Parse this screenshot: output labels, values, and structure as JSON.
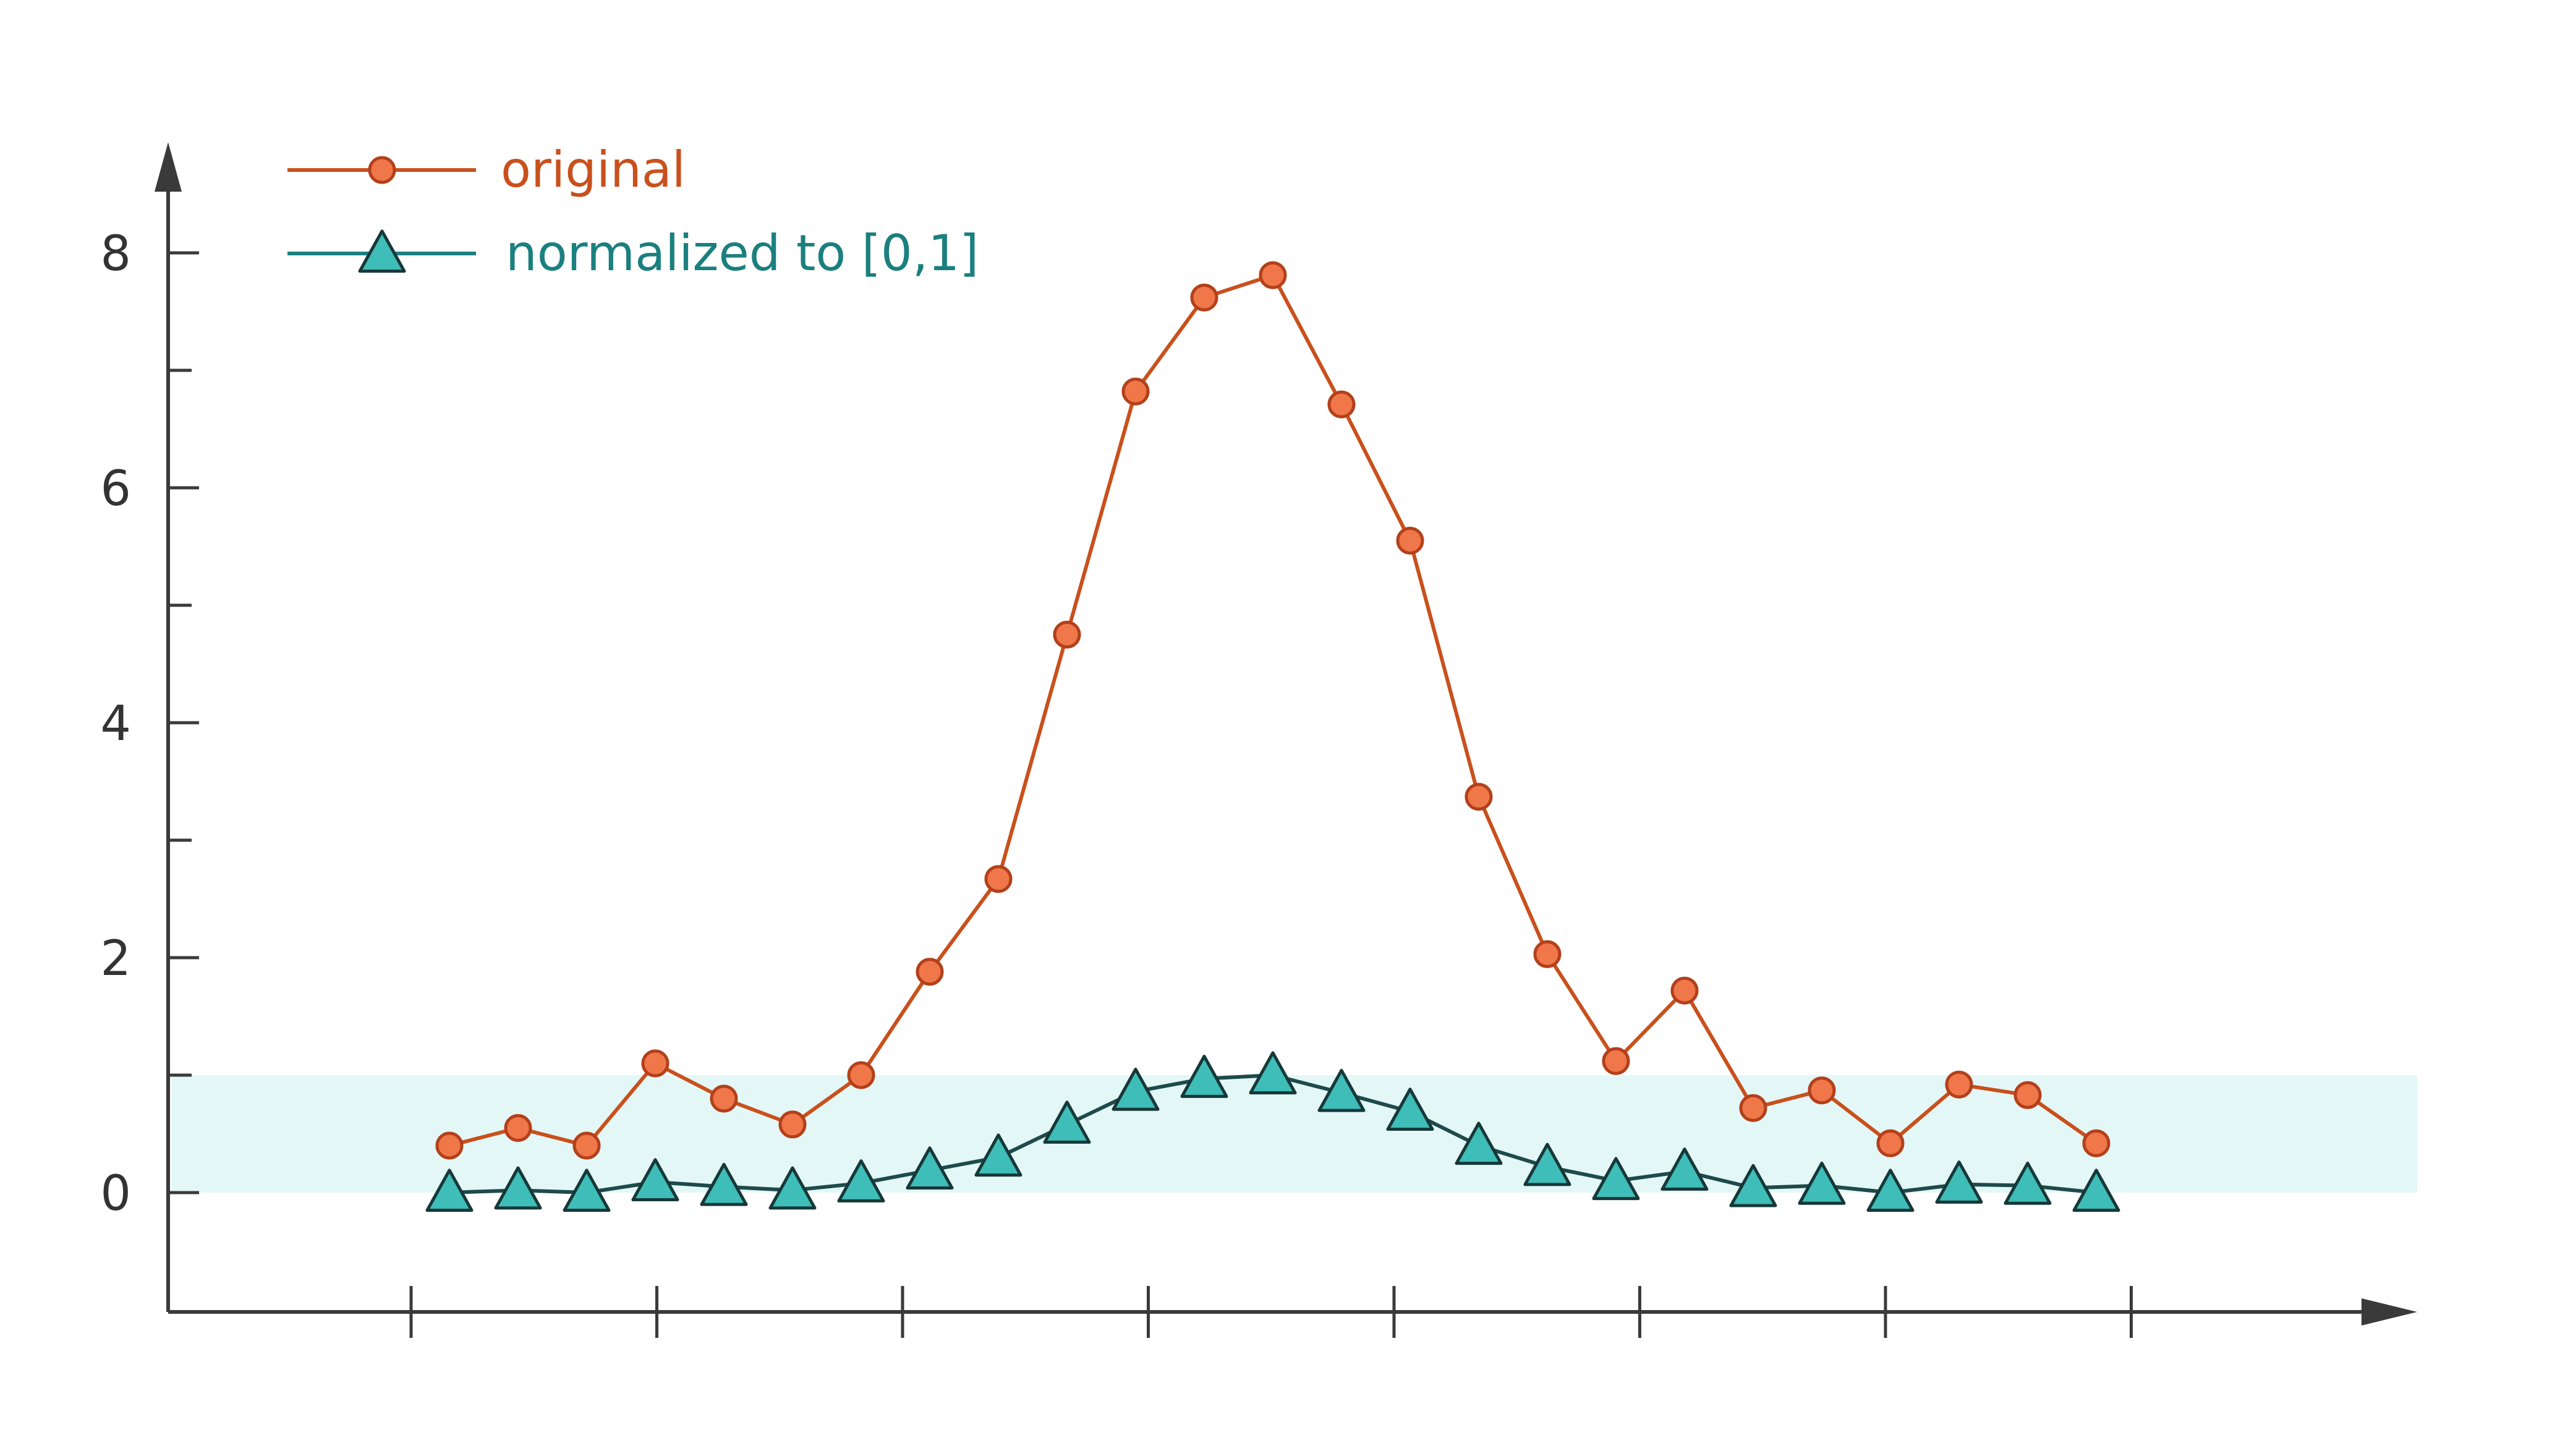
{
  "chart_data": {
    "type": "line",
    "title": "",
    "xlabel": "",
    "ylabel": "",
    "ylim": [
      -1,
      9
    ],
    "yticks_labeled": [
      0,
      2,
      4,
      6,
      8
    ],
    "yticks_minor": [
      1,
      3,
      5,
      7
    ],
    "xticks_count": 8,
    "band": {
      "y_from": 0,
      "y_to": 1,
      "color": "#e4f7f7"
    },
    "legend": {
      "placement": "top-left"
    },
    "grid": false,
    "x": [
      1,
      2,
      3,
      4,
      5,
      6,
      7,
      8,
      9,
      10,
      11,
      12,
      13,
      14,
      15,
      16,
      17,
      18,
      19,
      20,
      21,
      22,
      23,
      24,
      25
    ],
    "series": [
      {
        "name": "original",
        "marker": "circle",
        "line_color": "#c9501c",
        "marker_fill": "#f0774a",
        "marker_stroke": "#b3401a",
        "text_color": "#c9501c",
        "values": [
          0.4,
          0.55,
          0.4,
          1.1,
          0.8,
          0.58,
          1.0,
          1.88,
          2.67,
          4.75,
          6.82,
          7.62,
          7.81,
          6.71,
          5.55,
          3.37,
          2.03,
          1.12,
          1.72,
          0.72,
          0.87,
          0.42,
          0.92,
          0.83,
          0.42
        ]
      },
      {
        "name": "normalized to [0,1]",
        "marker": "triangle",
        "line_color": "#1e4a4a",
        "legend_line_color": "#1b7f7f",
        "marker_fill": "#3fbdb8",
        "marker_stroke": "#163838",
        "text_color": "#1b7f7f",
        "values": [
          0.0,
          0.02,
          0.0,
          0.09,
          0.05,
          0.02,
          0.08,
          0.19,
          0.3,
          0.58,
          0.86,
          0.97,
          1.0,
          0.85,
          0.69,
          0.4,
          0.22,
          0.1,
          0.18,
          0.04,
          0.06,
          0.0,
          0.07,
          0.06,
          0.0
        ]
      }
    ]
  }
}
